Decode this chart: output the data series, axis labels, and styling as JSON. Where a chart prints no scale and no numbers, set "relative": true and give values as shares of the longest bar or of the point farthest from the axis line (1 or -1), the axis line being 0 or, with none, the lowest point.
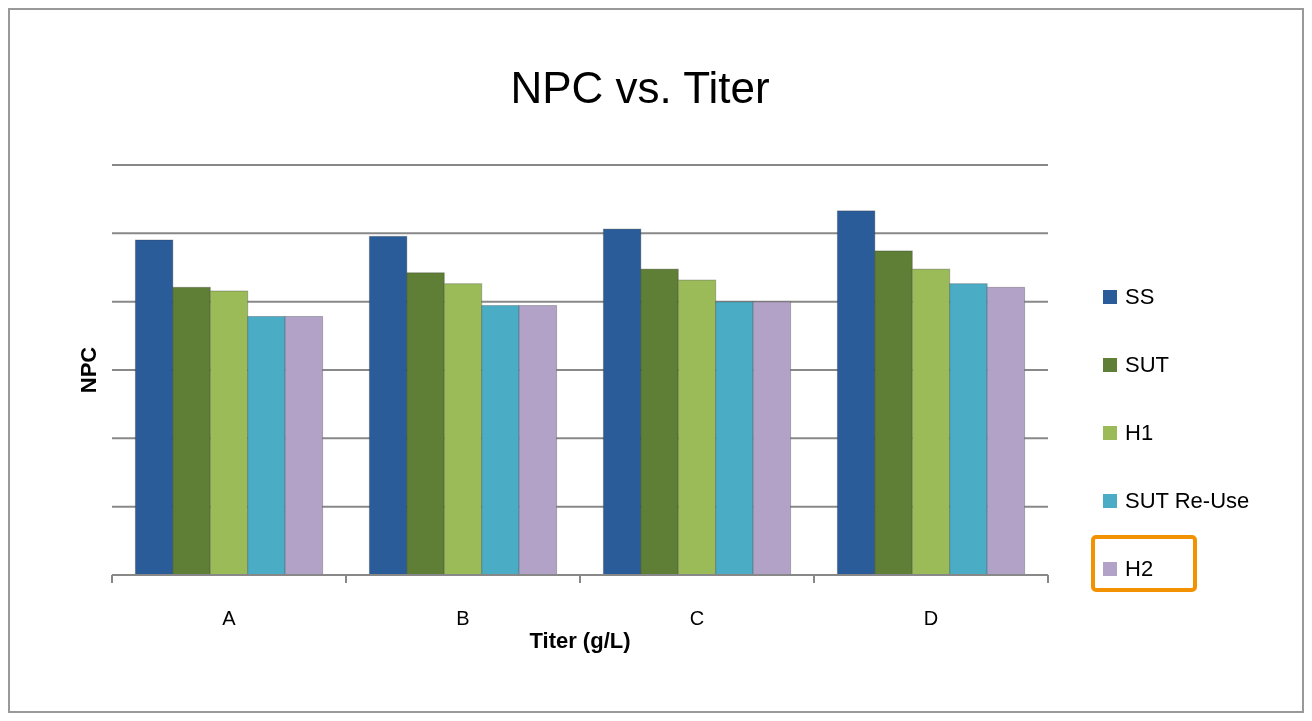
{
  "chart_data": {
    "type": "bar",
    "title": "NPC vs. Titer",
    "xlabel": "Titer (g/L)",
    "ylabel": "NPC",
    "relative": true,
    "grid": "y",
    "legend": "right",
    "categories": [
      "A",
      "B",
      "C",
      "D"
    ],
    "series": [
      {
        "name": "SS",
        "color": "#2a5c9a",
        "values": [
          0.92,
          0.93,
          0.95,
          1
        ]
      },
      {
        "name": "SUT",
        "color": "#5e7f35",
        "values": [
          0.79,
          0.83,
          0.84,
          0.89
        ]
      },
      {
        "name": "H1",
        "color": "#9bbb59",
        "values": [
          0.78,
          0.8,
          0.81,
          0.84
        ]
      },
      {
        "name": "SUT Re-Use",
        "color": "#4bacc6",
        "values": [
          0.71,
          0.74,
          0.75,
          0.8
        ]
      },
      {
        "name": "H2",
        "color": "#b3a2c7",
        "values": [
          0.71,
          0.74,
          0.75,
          0.79
        ]
      }
    ]
  }
}
